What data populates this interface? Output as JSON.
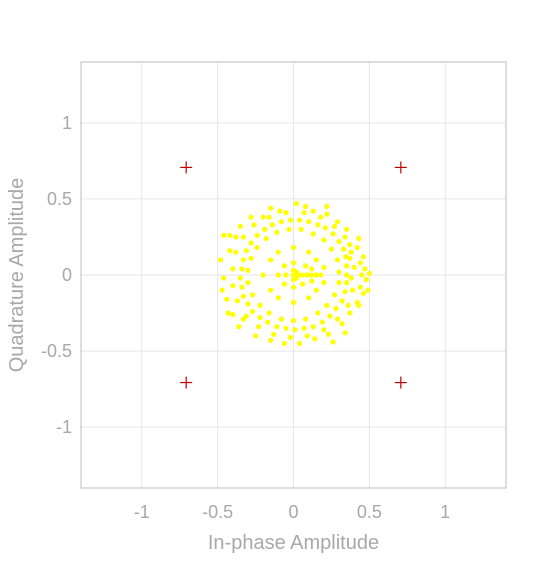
{
  "chart_data": {
    "type": "scatter",
    "title": "",
    "xlabel": "In-phase Amplitude",
    "ylabel": "Quadrature Amplitude",
    "xlim": [
      -1.4,
      1.4
    ],
    "ylim": [
      -1.4,
      1.4
    ],
    "grid": true,
    "xticks": [
      -1,
      -0.5,
      0,
      0.5,
      1
    ],
    "yticks": [
      -1,
      -0.5,
      0,
      0.5,
      1
    ],
    "xtick_labels": [
      "-1",
      "-0.5",
      "0",
      "0.5",
      "1"
    ],
    "ytick_labels": [
      "-1",
      "-0.5",
      "0",
      "0.5",
      "1"
    ],
    "series": [
      {
        "marker": "dot",
        "color": "#ffff00",
        "points": [
          [
            0.35,
            0.0
          ],
          [
            0.35,
            0.06
          ],
          [
            0.345,
            0.12
          ],
          [
            0.33,
            0.17
          ],
          [
            0.3,
            0.22
          ],
          [
            0.26,
            0.27
          ],
          [
            0.21,
            0.31
          ],
          [
            0.16,
            0.33
          ],
          [
            0.1,
            0.35
          ],
          [
            0.04,
            0.36
          ],
          [
            -0.02,
            0.36
          ],
          [
            -0.08,
            0.35
          ],
          [
            -0.14,
            0.33
          ],
          [
            -0.19,
            0.3
          ],
          [
            -0.24,
            0.26
          ],
          [
            -0.28,
            0.21
          ],
          [
            -0.31,
            0.16
          ],
          [
            -0.33,
            0.1
          ],
          [
            -0.34,
            0.04
          ],
          [
            -0.35,
            -0.02
          ],
          [
            -0.34,
            -0.08
          ],
          [
            -0.33,
            -0.14
          ],
          [
            -0.3,
            -0.19
          ],
          [
            -0.27,
            -0.24
          ],
          [
            -0.22,
            -0.28
          ],
          [
            -0.17,
            -0.31
          ],
          [
            -0.11,
            -0.34
          ],
          [
            -0.05,
            -0.35
          ],
          [
            0.01,
            -0.36
          ],
          [
            0.07,
            -0.35
          ],
          [
            0.13,
            -0.34
          ],
          [
            0.19,
            -0.31
          ],
          [
            0.24,
            -0.27
          ],
          [
            0.28,
            -0.22
          ],
          [
            0.32,
            -0.17
          ],
          [
            0.34,
            -0.11
          ],
          [
            0.35,
            -0.05
          ],
          [
            0.4,
            0.05
          ],
          [
            0.38,
            0.15
          ],
          [
            0.34,
            0.25
          ],
          [
            0.27,
            0.32
          ],
          [
            0.18,
            0.38
          ],
          [
            0.07,
            0.41
          ],
          [
            -0.05,
            0.41
          ],
          [
            -0.16,
            0.38
          ],
          [
            -0.26,
            0.33
          ],
          [
            -0.33,
            0.25
          ],
          [
            -0.38,
            0.15
          ],
          [
            -0.4,
            0.04
          ],
          [
            -0.4,
            -0.07
          ],
          [
            -0.37,
            -0.17
          ],
          [
            -0.31,
            -0.27
          ],
          [
            -0.23,
            -0.34
          ],
          [
            -0.13,
            -0.39
          ],
          [
            -0.02,
            -0.41
          ],
          [
            0.09,
            -0.4
          ],
          [
            0.2,
            -0.36
          ],
          [
            0.29,
            -0.29
          ],
          [
            0.36,
            -0.2
          ],
          [
            0.39,
            -0.1
          ],
          [
            0.3,
            0.02
          ],
          [
            0.29,
            0.1
          ],
          [
            0.25,
            0.17
          ],
          [
            0.2,
            0.23
          ],
          [
            0.13,
            0.27
          ],
          [
            0.05,
            0.3
          ],
          [
            -0.03,
            0.3
          ],
          [
            -0.11,
            0.28
          ],
          [
            -0.18,
            0.24
          ],
          [
            -0.24,
            0.18
          ],
          [
            -0.28,
            0.11
          ],
          [
            -0.3,
            0.03
          ],
          [
            -0.3,
            -0.05
          ],
          [
            -0.27,
            -0.13
          ],
          [
            -0.22,
            -0.2
          ],
          [
            -0.16,
            -0.25
          ],
          [
            -0.08,
            -0.29
          ],
          [
            0.0,
            -0.3
          ],
          [
            0.08,
            -0.29
          ],
          [
            0.16,
            -0.25
          ],
          [
            0.22,
            -0.2
          ],
          [
            0.27,
            -0.13
          ],
          [
            0.3,
            -0.05
          ],
          [
            0.44,
            0.08
          ],
          [
            0.45,
            0.0
          ],
          [
            0.44,
            -0.08
          ],
          [
            0.47,
            0.04
          ],
          [
            0.48,
            -0.03
          ],
          [
            0.46,
            0.12
          ],
          [
            0.46,
            -0.12
          ],
          [
            0.42,
            0.18
          ],
          [
            0.42,
            -0.18
          ],
          [
            0.5,
            0.01
          ],
          [
            0.49,
            -0.1
          ],
          [
            0.43,
            -0.2
          ],
          [
            0.37,
            0.2
          ],
          [
            0.37,
            -0.25
          ],
          [
            0.35,
            0.3
          ],
          [
            0.29,
            0.35
          ],
          [
            0.22,
            0.4
          ],
          [
            0.13,
            0.42
          ],
          [
            0.02,
            0.47
          ],
          [
            -0.09,
            0.42
          ],
          [
            -0.2,
            0.38
          ],
          [
            -0.42,
            0.26
          ],
          [
            -0.46,
            0.26
          ],
          [
            -0.38,
            0.25
          ],
          [
            -0.48,
            0.1
          ],
          [
            -0.46,
            -0.02
          ],
          [
            -0.47,
            -0.1
          ],
          [
            -0.44,
            -0.16
          ],
          [
            -0.43,
            -0.25
          ],
          [
            -0.4,
            -0.26
          ],
          [
            -0.33,
            -0.29
          ],
          [
            -0.25,
            -0.4
          ],
          [
            -0.15,
            -0.43
          ],
          [
            -0.06,
            -0.45
          ],
          [
            0.04,
            -0.45
          ],
          [
            0.14,
            -0.42
          ],
          [
            0.23,
            -0.39
          ],
          [
            0.32,
            -0.32
          ],
          [
            0.34,
            -0.38
          ],
          [
            0.26,
            -0.44
          ],
          [
            0.37,
            0.11
          ],
          [
            0.38,
            -0.02
          ],
          [
            0.22,
            0.45
          ],
          [
            0.08,
            0.45
          ],
          [
            -0.15,
            0.44
          ],
          [
            -0.28,
            0.38
          ],
          [
            -0.35,
            0.32
          ],
          [
            -0.42,
            0.16
          ],
          [
            -0.36,
            -0.34
          ],
          [
            0.43,
            0.24
          ],
          [
            0.15,
            0.1
          ],
          [
            0.2,
            0.05
          ],
          [
            0.2,
            -0.05
          ],
          [
            0.15,
            -0.1
          ],
          [
            0.1,
            0.15
          ],
          [
            0.0,
            0.18
          ],
          [
            -0.1,
            0.15
          ],
          [
            -0.15,
            0.1
          ],
          [
            -0.2,
            0.0
          ],
          [
            -0.15,
            -0.1
          ],
          [
            -0.1,
            -0.15
          ],
          [
            0.0,
            -0.18
          ],
          [
            0.1,
            -0.15
          ],
          [
            0.18,
            0.0
          ],
          [
            0.08,
            0.06
          ],
          [
            0.06,
            -0.06
          ],
          [
            -0.06,
            0.06
          ],
          [
            -0.06,
            -0.06
          ],
          [
            0.0,
            0.0
          ],
          [
            0.03,
            0.0
          ],
          [
            0.06,
            0.0
          ],
          [
            0.09,
            0.0
          ],
          [
            0.12,
            0.0
          ],
          [
            0.15,
            0.0
          ],
          [
            0.0,
            0.03
          ],
          [
            0.0,
            -0.03
          ],
          [
            0.02,
            0.02
          ],
          [
            0.02,
            -0.02
          ],
          [
            -0.1,
            0.0
          ],
          [
            -0.05,
            0.0
          ],
          [
            0.0,
            0.08
          ],
          [
            0.0,
            -0.08
          ],
          [
            0.12,
            0.04
          ],
          [
            0.12,
            -0.04
          ]
        ]
      },
      {
        "marker": "plus",
        "color": "#c00000",
        "points": [
          [
            -0.7071,
            0.7071
          ],
          [
            0.7071,
            0.7071
          ],
          [
            -0.7071,
            -0.7071
          ],
          [
            0.7071,
            -0.7071
          ]
        ]
      }
    ]
  }
}
